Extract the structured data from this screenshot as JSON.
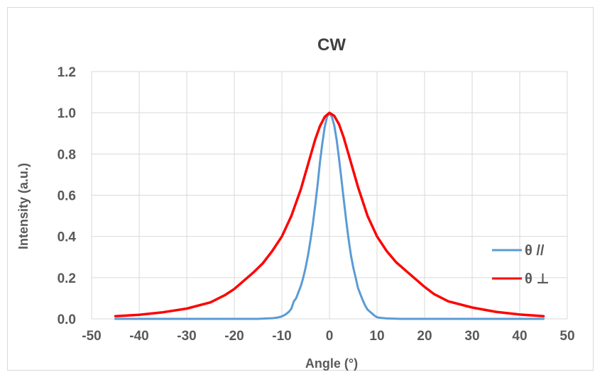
{
  "chart_data": {
    "type": "line",
    "title": "CW",
    "xlabel": "Angle (°)",
    "ylabel": "Intensity (a.u.)",
    "xlim": [
      -50,
      50
    ],
    "ylim": [
      0,
      1.2
    ],
    "xticks": [
      -50,
      -40,
      -30,
      -20,
      -10,
      0,
      10,
      20,
      30,
      40,
      50
    ],
    "yticks": [
      "0.0",
      "0.2",
      "0.4",
      "0.6",
      "0.8",
      "1.0",
      "1.2"
    ],
    "grid": true,
    "legend_position": "right",
    "series": [
      {
        "name": "θ //",
        "color": "#5b9bd5",
        "x": [
          -45,
          -15,
          -12,
          -11,
          -10,
          -9.5,
          -9,
          -8.5,
          -8,
          -7.5,
          -7,
          -6.5,
          -6,
          -5.5,
          -5,
          -4.5,
          -4,
          -3.5,
          -3,
          -2.5,
          -2,
          -1.5,
          -1,
          -0.5,
          0,
          0.5,
          1,
          1.5,
          2,
          2.5,
          3,
          3.5,
          4,
          4.5,
          5,
          5.5,
          6,
          6.5,
          7,
          7.5,
          8,
          8.5,
          9,
          9.5,
          10,
          11,
          12,
          15,
          45
        ],
        "y": [
          0.0,
          0.0,
          0.003,
          0.006,
          0.012,
          0.018,
          0.025,
          0.035,
          0.05,
          0.085,
          0.1,
          0.13,
          0.16,
          0.2,
          0.25,
          0.31,
          0.38,
          0.46,
          0.55,
          0.65,
          0.76,
          0.85,
          0.93,
          0.98,
          1.0,
          0.98,
          0.94,
          0.87,
          0.78,
          0.68,
          0.58,
          0.48,
          0.39,
          0.31,
          0.25,
          0.2,
          0.15,
          0.12,
          0.09,
          0.065,
          0.045,
          0.035,
          0.025,
          0.015,
          0.008,
          0.004,
          0.002,
          0.0,
          0.0
        ]
      },
      {
        "name": "θ ⊥",
        "color": "#ff0000",
        "x": [
          -45,
          -40,
          -35,
          -30,
          -25,
          -22,
          -20,
          -18,
          -16,
          -14,
          -12,
          -10,
          -8,
          -6,
          -5,
          -4,
          -3,
          -2,
          -1,
          0,
          1,
          2,
          3,
          4,
          5,
          6,
          8,
          10,
          12,
          14,
          16,
          18,
          20,
          22,
          25,
          30,
          35,
          40,
          45
        ],
        "y": [
          0.013,
          0.02,
          0.032,
          0.05,
          0.08,
          0.115,
          0.145,
          0.185,
          0.225,
          0.27,
          0.33,
          0.4,
          0.5,
          0.63,
          0.71,
          0.79,
          0.87,
          0.935,
          0.98,
          1.0,
          0.985,
          0.945,
          0.88,
          0.8,
          0.72,
          0.64,
          0.5,
          0.4,
          0.33,
          0.275,
          0.235,
          0.195,
          0.155,
          0.12,
          0.085,
          0.055,
          0.034,
          0.021,
          0.013
        ]
      }
    ]
  }
}
